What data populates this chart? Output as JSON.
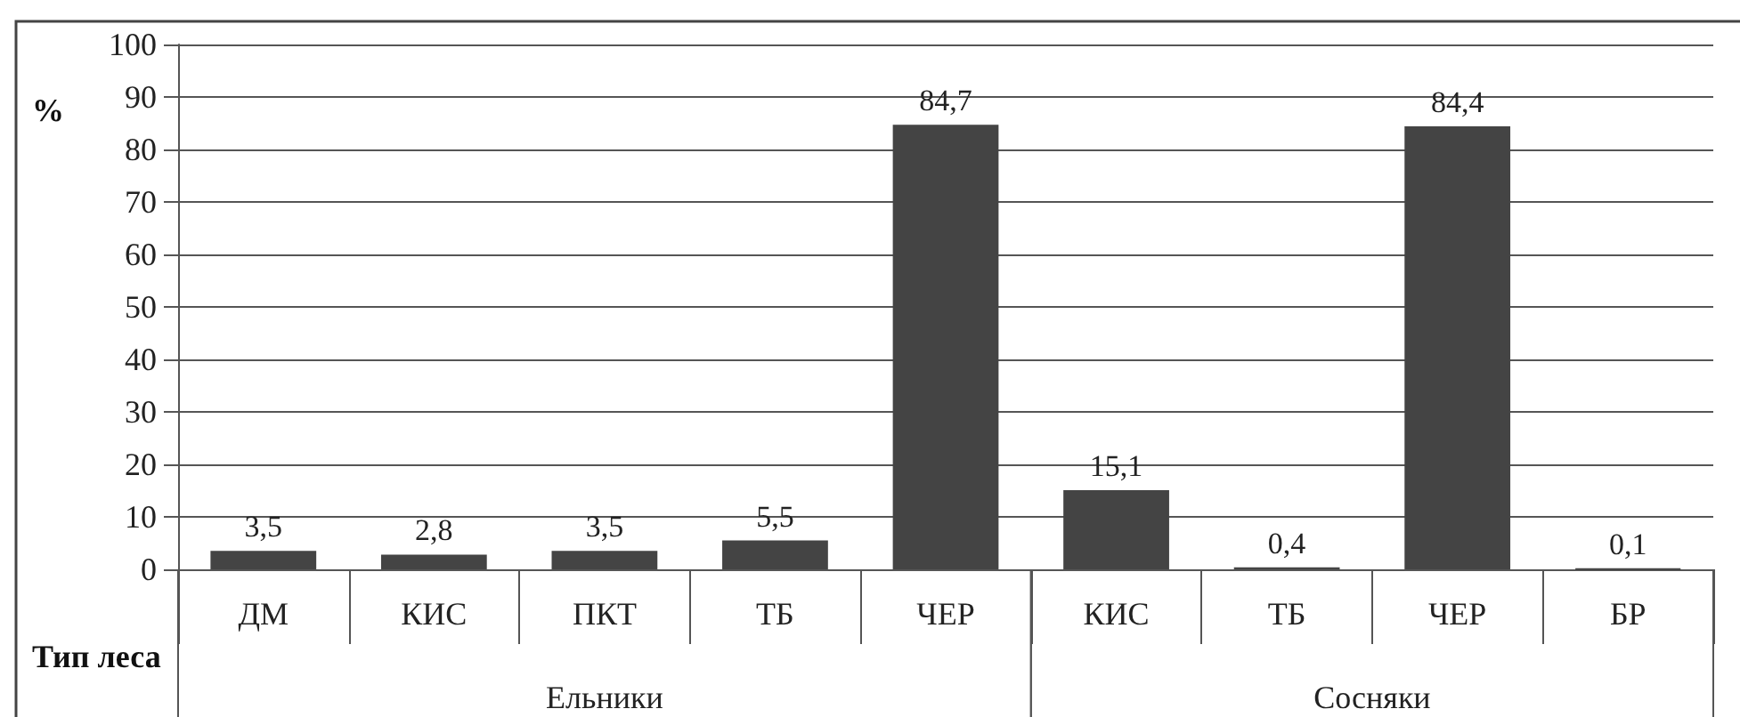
{
  "chart_data": {
    "type": "bar",
    "xlabel": "Тип леса",
    "ylabel": "%",
    "categories": [
      "ДМ",
      "КИС",
      "ПКТ",
      "ТБ",
      "ЧЕР",
      "КИС",
      "ТБ",
      "ЧЕР",
      "БР"
    ],
    "values": [
      3.5,
      2.8,
      3.5,
      5.5,
      84.7,
      15.1,
      0.4,
      84.4,
      0.1
    ],
    "value_labels": [
      "3,5",
      "2,8",
      "3,5",
      "5,5",
      "84,7",
      "15,1",
      "0,4",
      "84,4",
      "0,1"
    ],
    "color": "#444444",
    "ylim": [
      0,
      100
    ],
    "yticks": [
      0,
      10,
      20,
      30,
      40,
      50,
      60,
      70,
      80,
      90,
      100
    ],
    "grid": "y",
    "annotations": [
      "Ельники",
      "Сосняки"
    ]
  }
}
